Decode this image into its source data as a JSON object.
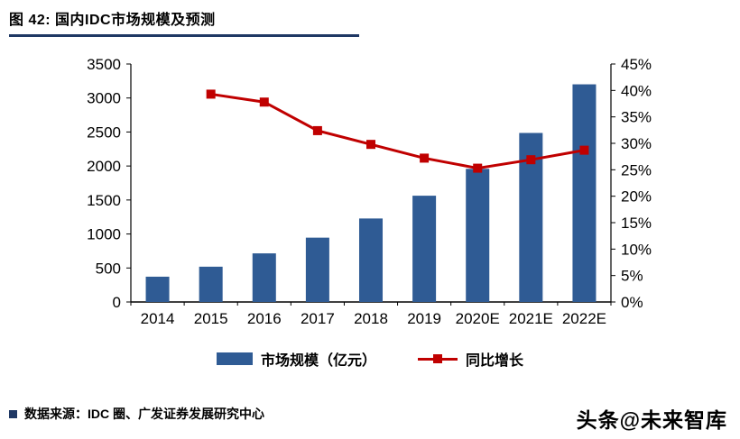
{
  "header": {
    "title": "图 42:  国内IDC市场规模及预测"
  },
  "colors": {
    "accent_navy": "#1F3864",
    "bar_blue": "#2F5B94",
    "line_red": "#C00000",
    "axis_black": "#000000"
  },
  "chart_data": {
    "type": "bar+line",
    "title": "国内IDC市场规模及预测",
    "categories": [
      "2014",
      "2015",
      "2016",
      "2017",
      "2018",
      "2019",
      "2020E",
      "2021E",
      "2022E"
    ],
    "series": [
      {
        "name": "市场规模（亿元）",
        "type": "bar",
        "axis": "left",
        "color": "#2F5B94",
        "values": [
          372,
          519,
          715,
          946,
          1228,
          1563,
          1958,
          2486,
          3201
        ]
      },
      {
        "name": "同比增长",
        "type": "line",
        "axis": "right",
        "color": "#C00000",
        "values": [
          null,
          39.3,
          37.8,
          32.4,
          29.8,
          27.2,
          25.3,
          26.9,
          28.7
        ]
      }
    ],
    "left_axis": {
      "min": 0,
      "max": 3500,
      "step": 500
    },
    "right_axis": {
      "min": 0,
      "max": 45,
      "step": 5,
      "suffix": "%"
    },
    "grid": false,
    "legend_position": "bottom"
  },
  "footer": {
    "source": "数据来源：IDC 圈、广发证券发展研究中心",
    "watermark": "头条@未来智库"
  }
}
